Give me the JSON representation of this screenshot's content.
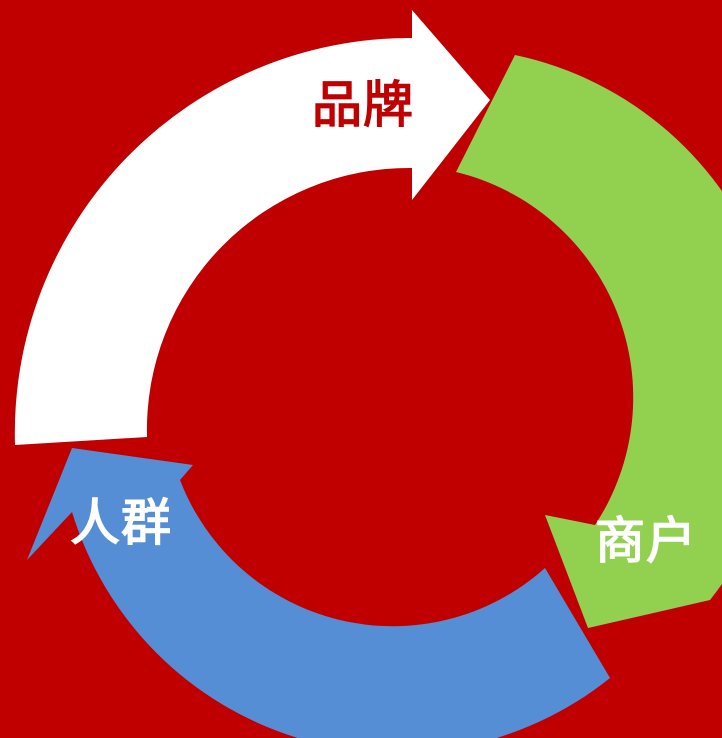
{
  "colors": {
    "background": "#c00000",
    "brand_arrow": "#ffffff",
    "merchant_arrow": "#92d050",
    "crowd_arrow": "#558ed5",
    "brand_label": "#c00000",
    "merchant_label": "#ffffff",
    "crowd_label": "#ffffff"
  },
  "cycle": {
    "nodes": [
      {
        "id": "brand",
        "label": "品牌",
        "next": "merchant"
      },
      {
        "id": "merchant",
        "label": "商户",
        "next": "crowd"
      },
      {
        "id": "crowd",
        "label": "人群",
        "next": "brand"
      }
    ]
  }
}
